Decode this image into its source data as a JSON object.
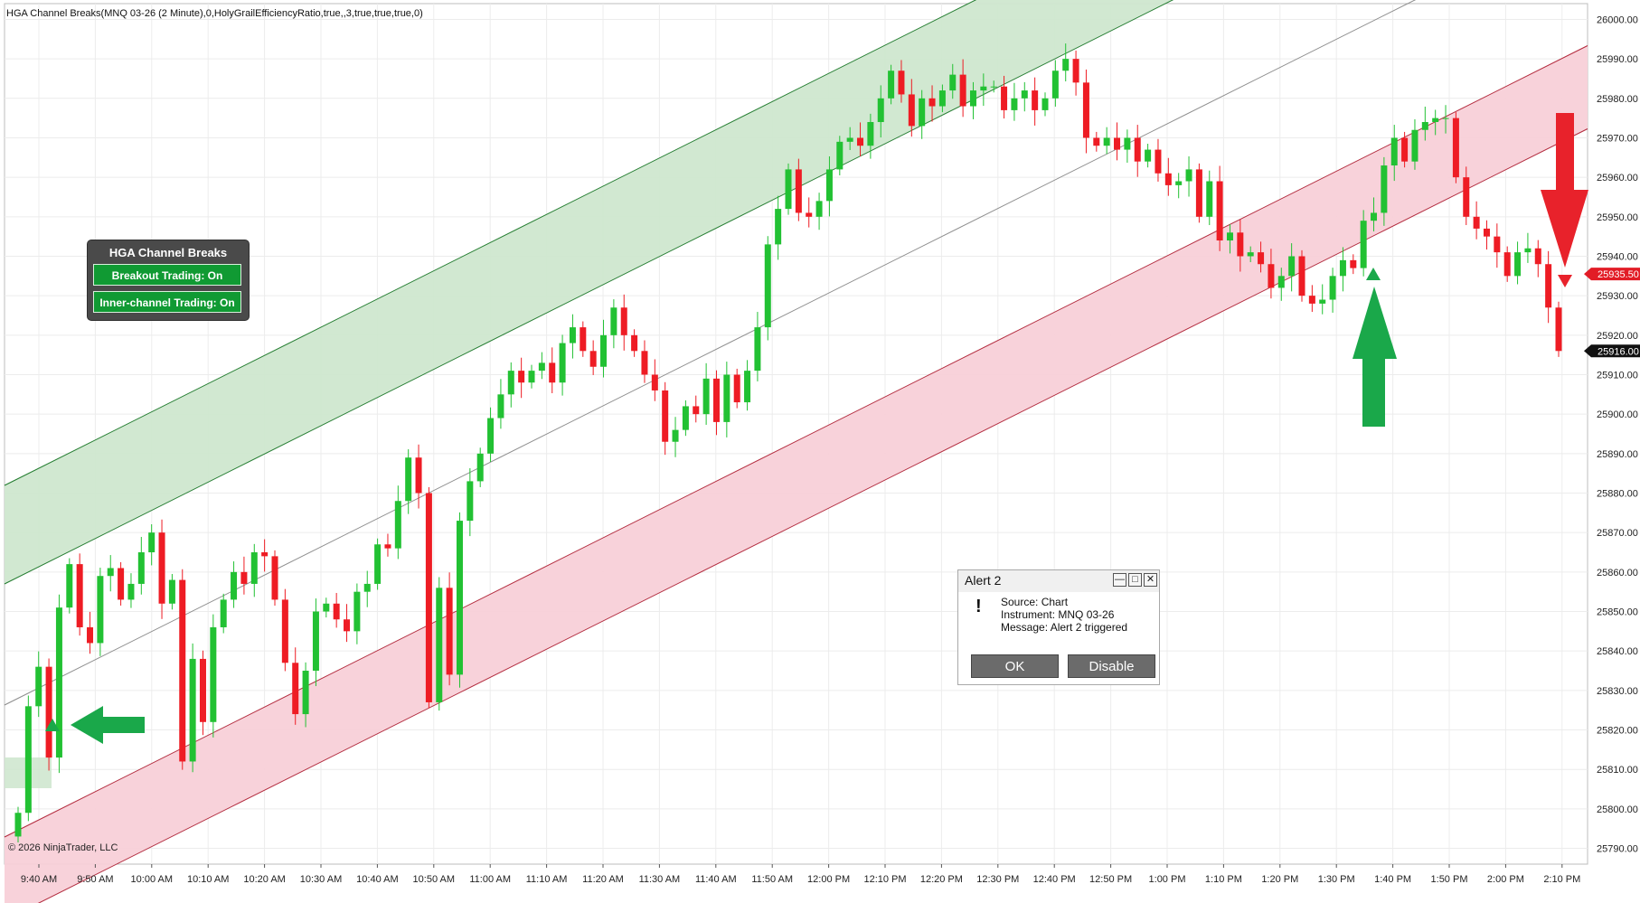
{
  "chart_title": "HGA Channel Breaks(MNQ 03-26 (2 Minute),0,HolyGrailEfficiencyRatio,true,,3,true,true,true,0)",
  "copyright": "© 2026 NinjaTrader, LLC",
  "panel": {
    "title": "HGA Channel Breaks",
    "breakout_label": "Breakout Trading: On",
    "inner_label": "Inner-channel Trading: On"
  },
  "alert": {
    "title": "Alert 2",
    "source": "Source: Chart",
    "instrument": "Instrument: MNQ 03-26",
    "message": "Message: Alert 2 triggered",
    "ok_label": "OK",
    "disable_label": "Disable"
  },
  "colors": {
    "up": "#22c133",
    "down": "#ee1c24",
    "green_channel": "#cfe7cf",
    "red_channel": "#f8d0d8",
    "arrow_green": "#1aa84a",
    "arrow_red": "#e8222b",
    "price_red": "#e21c26"
  },
  "chart_data": {
    "type": "candlestick",
    "instrument": "MNQ 03-26 (2 Minute)",
    "x_ticks": [
      "9:40 AM",
      "9:50 AM",
      "10:00 AM",
      "10:10 AM",
      "10:20 AM",
      "10:30 AM",
      "10:40 AM",
      "10:50 AM",
      "11:00 AM",
      "11:10 AM",
      "11:20 AM",
      "11:30 AM",
      "11:40 AM",
      "11:50 AM",
      "12:00 PM",
      "12:10 PM",
      "12:20 PM",
      "12:30 PM",
      "12:40 PM",
      "12:50 PM",
      "1:00 PM",
      "1:10 PM",
      "1:20 PM",
      "1:30 PM",
      "1:40 PM",
      "1:50 PM",
      "2:00 PM",
      "2:10 PM"
    ],
    "y_ticks": [
      "25790.00",
      "25800.00",
      "25810.00",
      "25820.00",
      "25830.00",
      "25840.00",
      "25850.00",
      "25860.00",
      "25870.00",
      "25880.00",
      "25890.00",
      "25900.00",
      "25910.00",
      "25920.00",
      "25930.00",
      "25940.00",
      "25950.00",
      "25960.00",
      "25970.00",
      "25980.00",
      "25990.00",
      "26000.00"
    ],
    "ylim": [
      25786,
      26004
    ],
    "price_labels": [
      {
        "text": "25935.50",
        "value": 25935.5,
        "color": "#e21c26"
      },
      {
        "text": "25916.00",
        "value": 25916.0,
        "color": "#111111"
      }
    ],
    "closes": [
      25799,
      25826,
      25836,
      25813,
      25851,
      25862,
      25846,
      25842,
      25859,
      25861,
      25853,
      25857,
      25865,
      25870,
      25852,
      25858,
      25812,
      25838,
      25822,
      25846,
      25853,
      25860,
      25857,
      25865,
      25864,
      25853,
      25837,
      25824,
      25835,
      25850,
      25852,
      25848,
      25845,
      25855,
      25857,
      25867,
      25866,
      25878,
      25889,
      25880,
      25827,
      25856,
      25834,
      25873,
      25883,
      25890,
      25899,
      25905,
      25911,
      25908,
      25911,
      25913,
      25908,
      25918,
      25922,
      25916,
      25912,
      25920,
      25927,
      25920,
      25916,
      25910,
      25906,
      25893,
      25896,
      25902,
      25900,
      25909,
      25898,
      25910,
      25903,
      25911,
      25922,
      25943,
      25952,
      25962,
      25951,
      25950,
      25954,
      25962,
      25969,
      25970,
      25968,
      25974,
      25980,
      25987,
      25981,
      25973,
      25980,
      25978,
      25982,
      25986,
      25978,
      25982,
      25983,
      25983,
      25977,
      25980,
      25982,
      25977,
      25980,
      25987,
      25990,
      25984,
      25970,
      25968,
      25970,
      25967,
      25970,
      25964,
      25967,
      25961,
      25958,
      25959,
      25962,
      25950,
      25959,
      25944,
      25946,
      25940,
      25941,
      25938,
      25932,
      25935,
      25940,
      25930,
      25928,
      25929,
      25935,
      25939,
      25937,
      25949,
      25951,
      25963,
      25970,
      25964,
      25972,
      25974,
      25975,
      25975,
      25960,
      25950,
      25947,
      25945,
      25941,
      25935,
      25941,
      25942,
      25938,
      25927,
      25916
    ],
    "annotations": [
      "up-arrow 9:40 AM",
      "left-arrow 9:40 AM",
      "up-arrow 1:37 PM",
      "down-arrow 2:10 PM"
    ],
    "alert_level": 25935.5
  }
}
